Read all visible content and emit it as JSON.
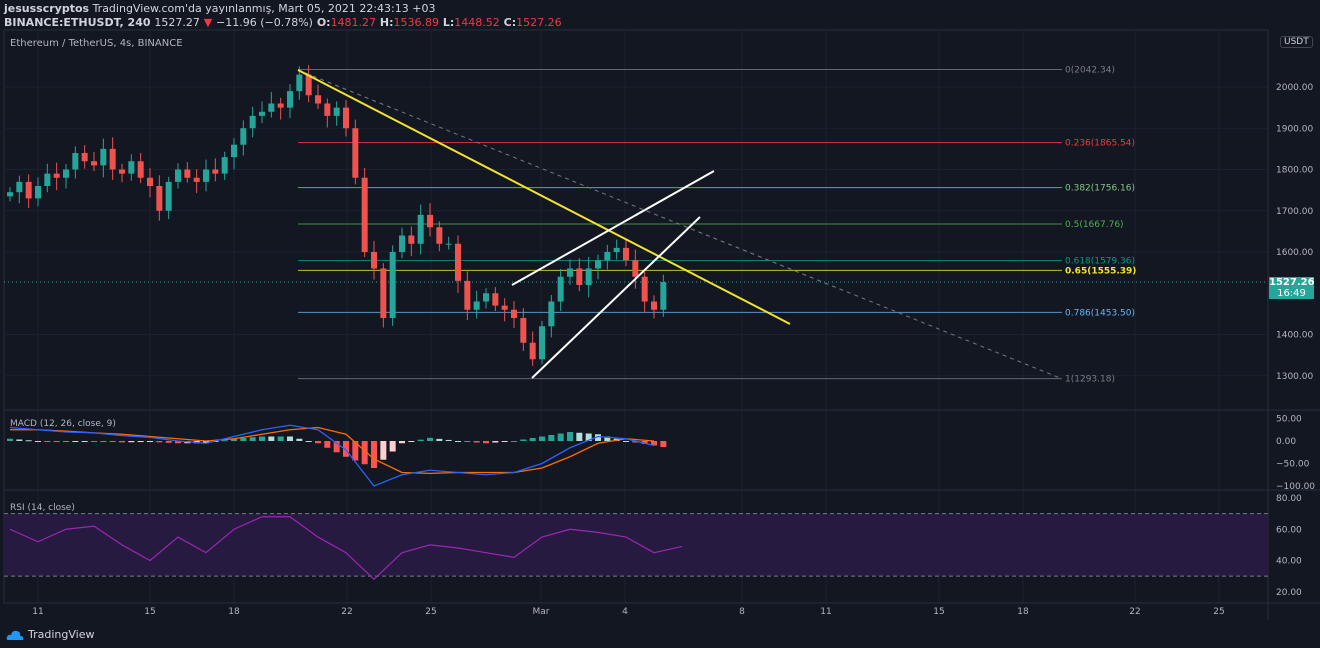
{
  "header": {
    "author": "jesusscryptos",
    "published": "TradingView.com'da yayınlanmış, Mart 05, 2021 22:43:13 +03",
    "symbol": "BINANCE:ETHUSDT, 240",
    "last": "1527.27",
    "change": "−11.96 (−0.78%)",
    "o_label": "O:",
    "o": "1481.27",
    "h_label": "H:",
    "h": "1536.89",
    "l_label": "L:",
    "l": "1448.52",
    "c_label": "C:",
    "c": "1527.26"
  },
  "chart_title": "Ethereum / TetherUS, 4s, BINANCE",
  "currency": "USDT",
  "price_badge": {
    "price": "1527.26",
    "countdown": "16:49"
  },
  "colors": {
    "up": "#26a69a",
    "down": "#ef5350",
    "trendline": "#f1e42d",
    "channel": "#ffffff",
    "macd": "#2962ff",
    "signal": "#ff6d00",
    "rsi": "#9c27b0"
  },
  "footer": {
    "brand": "TradingView"
  },
  "chart_data": [
    {
      "type": "candlestick",
      "title": "Ethereum / TetherUS, 4s, BINANCE",
      "y_ticks": [
        "2000.00",
        "1900.00",
        "1800.00",
        "1700.00",
        "1600.00",
        "1400.00",
        "1300.00"
      ],
      "x_ticks": [
        "11",
        "15",
        "18",
        "22",
        "25",
        "Mar",
        "4",
        "8",
        "11",
        "15",
        "18",
        "22",
        "25"
      ],
      "closes": [
        1745,
        1770,
        1730,
        1760,
        1790,
        1780,
        1800,
        1840,
        1820,
        1810,
        1850,
        1800,
        1790,
        1820,
        1780,
        1760,
        1700,
        1770,
        1800,
        1780,
        1770,
        1800,
        1790,
        1830,
        1860,
        1900,
        1930,
        1940,
        1960,
        1950,
        1990,
        2030,
        1980,
        1960,
        1930,
        1950,
        1900,
        1780,
        1600,
        1560,
        1440,
        1600,
        1640,
        1620,
        1690,
        1660,
        1620,
        1620,
        1530,
        1460,
        1480,
        1500,
        1470,
        1460,
        1440,
        1380,
        1340,
        1420,
        1480,
        1540,
        1560,
        1520,
        1560,
        1580,
        1600,
        1610,
        1580,
        1540,
        1480,
        1460,
        1527
      ],
      "fib_levels": [
        {
          "label": "0(2042.34)",
          "price": 2042.34,
          "color": "#787b86"
        },
        {
          "label": "0.236(1865.54)",
          "price": 1865.54,
          "color": "#f23645"
        },
        {
          "label": "0.382(1756.16)",
          "price": 1756.16,
          "color": "#81c784"
        },
        {
          "label": "0.5(1667.76)",
          "price": 1667.76,
          "color": "#4caf50"
        },
        {
          "label": "0.618(1579.36)",
          "price": 1579.36,
          "color": "#089981"
        },
        {
          "label": "0.65(1555.39)",
          "price": 1555.39,
          "color": "#f1e42d"
        },
        {
          "label": "0.786(1453.50)",
          "price": 1453.5,
          "color": "#64b5f6"
        },
        {
          "label": "1(1293.18)",
          "price": 1293.18,
          "color": "#787b86"
        }
      ]
    },
    {
      "type": "line",
      "title": "MACD (12, 26, close, 9)",
      "y_ticks": [
        "50.00",
        "0.00",
        "−50.00",
        "−100.00"
      ],
      "macd": [
        30,
        25,
        20,
        18,
        12,
        8,
        0,
        -5,
        10,
        25,
        35,
        25,
        -20,
        -100,
        -75,
        -65,
        -70,
        -75,
        -70,
        -50,
        -15,
        10,
        5,
        -10
      ],
      "signal": [
        25,
        25,
        22,
        18,
        15,
        10,
        5,
        0,
        5,
        15,
        25,
        30,
        15,
        -40,
        -70,
        -72,
        -70,
        -70,
        -70,
        -60,
        -35,
        -5,
        5,
        0
      ]
    },
    {
      "type": "line",
      "title": "RSI (14, close)",
      "y_ticks": [
        "80.00",
        "60.00",
        "40.00",
        "20.00"
      ],
      "bands": [
        70,
        30
      ],
      "rsi": [
        60,
        52,
        60,
        62,
        50,
        40,
        55,
        45,
        60,
        68,
        68,
        55,
        45,
        28,
        45,
        50,
        48,
        45,
        42,
        55,
        60,
        58,
        55,
        45,
        49
      ]
    }
  ]
}
